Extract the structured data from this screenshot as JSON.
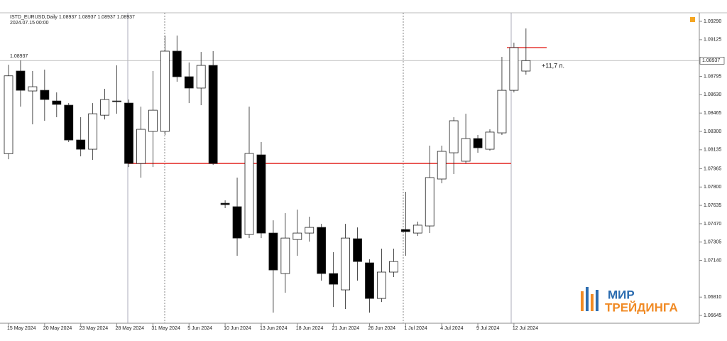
{
  "chart_data": {
    "type": "candlestick",
    "header": "ISTD_EURUSD,Daily  1.08937 1.08937 1.08937 1.08937",
    "header_time": "2024.07.15 00:00",
    "current_price": 1.08937,
    "profit_label": "+11,7 п.",
    "categories": [
      "15 May 2024",
      null,
      null,
      "20 May 2024",
      null,
      null,
      "23 May 2024",
      null,
      null,
      "28 May 2024",
      null,
      null,
      "31 May 2024",
      null,
      null,
      "5 Jun 2024",
      null,
      null,
      "10 Jun 2024",
      null,
      null,
      "13 Jun 2024",
      null,
      null,
      "18 Jun 2024",
      null,
      null,
      "21 Jun 2024",
      null,
      null,
      "26 Jun 2024",
      null,
      null,
      "1 Jul 2024",
      null,
      null,
      "4 Jul 2024",
      null,
      null,
      "9 Jul 2024",
      null,
      null,
      "12 Jul 2024",
      null
    ],
    "open": [
      1.081,
      1.08843,
      1.08664,
      1.0867,
      1.08574,
      1.08536,
      1.08223,
      1.0814,
      1.08446,
      1.08574,
      1.08555,
      1.08012,
      1.083,
      1.083,
      1.09022,
      1.08792,
      1.0869,
      1.08894,
      1.07654,
      1.07623,
      1.07373,
      1.08089,
      1.07386,
      1.07022,
      1.07328,
      1.07386,
      1.07437,
      1.07022,
      1.06875,
      1.07335,
      1.07118,
      1.06798,
      1.07035,
      1.07418,
      1.07386,
      1.0745,
      1.07872,
      1.08108,
      1.08032,
      1.08236,
      1.0814,
      1.08287,
      1.0867,
      1.08843
    ],
    "high": [
      1.089,
      1.08939,
      1.08843,
      1.08856,
      1.08651,
      1.08555,
      1.08428,
      1.08555,
      1.08683,
      1.08894,
      1.08587,
      1.08523,
      1.08843,
      1.09162,
      1.09162,
      1.0892,
      1.09015,
      1.09022,
      1.0768,
      1.07885,
      1.08523,
      1.08204,
      1.07501,
      1.07565,
      1.07597,
      1.07533,
      1.07469,
      1.07214,
      1.07469,
      1.07437,
      1.0715,
      1.07246,
      1.07246,
      1.07757,
      1.07489,
      1.08172,
      1.08172,
      1.08428,
      1.08459,
      1.08268,
      1.08319,
      1.08971,
      1.09098,
      1.09226
    ],
    "low": [
      1.0805,
      1.08523,
      1.08364,
      1.08396,
      1.08428,
      1.08204,
      1.08076,
      1.08044,
      1.08408,
      1.08459,
      1.0798,
      1.07884,
      1.0798,
      1.08268,
      1.08747,
      1.08555,
      1.08536,
      1.07999,
      1.0761,
      1.07182,
      1.07341,
      1.07341,
      1.06671,
      1.06849,
      1.07182,
      1.07309,
      1.06958,
      1.06721,
      1.06703,
      1.06958,
      1.06671,
      1.06766,
      1.0699,
      1.07182,
      1.0736,
      1.07386,
      1.07834,
      1.07917,
      1.08012,
      1.08108,
      1.08127,
      1.08268,
      1.08651,
      1.08811
    ],
    "close": [
      1.088,
      1.0867,
      1.08702,
      1.08587,
      1.08543,
      1.08223,
      1.0814,
      1.08459,
      1.08587,
      1.08568,
      1.08012,
      1.08319,
      1.08491,
      1.09022,
      1.08792,
      1.0869,
      1.08894,
      1.08012,
      1.07642,
      1.07341,
      1.08102,
      1.07386,
      1.07054,
      1.07341,
      1.07386,
      1.07437,
      1.07022,
      1.06926,
      1.07341,
      1.0713,
      1.06798,
      1.07035,
      1.0713,
      1.07399,
      1.07457,
      1.07885,
      1.08121,
      1.08396,
      1.08236,
      1.08153,
      1.08294,
      1.0867,
      1.09054,
      1.08937
    ],
    "levels": [
      1.08012,
      1.09054
    ],
    "ylim": [
      1.06575,
      1.09367
    ],
    "yticks": [
      {
        "value": 1.0929,
        "label": "1.09290"
      },
      1.09125,
      1.08795,
      {
        "value": 1.0863,
        "label": "1.08630"
      },
      1.08465,
      {
        "value": 1.083,
        "label": "1.08300"
      },
      1.08135,
      1.07965,
      {
        "value": 1.078,
        "label": "1.07800"
      },
      1.07635,
      {
        "value": 1.0747,
        "label": "1.07470"
      },
      1.07305,
      {
        "value": 1.0714,
        "label": "1.07140"
      },
      {
        "value": 1.0681,
        "label": "1.06810"
      },
      1.06645
    ]
  },
  "logo": {
    "line1": "МИР",
    "line2": "ТРЕЙДИНГА"
  }
}
